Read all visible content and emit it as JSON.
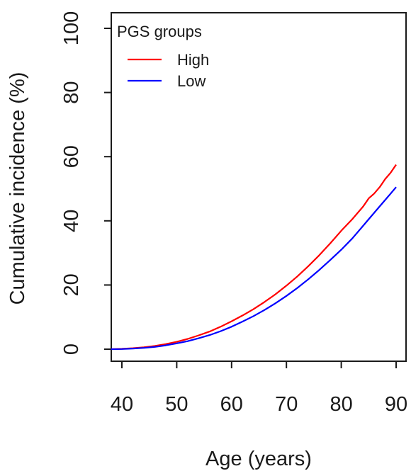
{
  "chart_data": {
    "type": "line",
    "title": "",
    "xlabel": "Age (years)",
    "ylabel": "Cumulative incidence (%)",
    "xlim": [
      38,
      91
    ],
    "ylim": [
      -4,
      105
    ],
    "xticks": [
      40,
      50,
      60,
      70,
      80,
      90
    ],
    "yticks": [
      0,
      20,
      40,
      60,
      80,
      100
    ],
    "grid": false,
    "legend": {
      "title": "PGS groups",
      "position": "top-left"
    },
    "series": [
      {
        "name": "High",
        "color": "#ff0000",
        "x": [
          38,
          40,
          42,
          44,
          46,
          48,
          50,
          52,
          54,
          56,
          58,
          60,
          62,
          64,
          66,
          68,
          70,
          72,
          74,
          76,
          78,
          80,
          82,
          84,
          85,
          86,
          87,
          88,
          89,
          90
        ],
        "y": [
          0,
          0.1,
          0.3,
          0.6,
          1.0,
          1.6,
          2.3,
          3.2,
          4.3,
          5.5,
          7.0,
          8.7,
          10.5,
          12.5,
          14.7,
          17.1,
          19.8,
          22.7,
          25.9,
          29.3,
          33.0,
          36.9,
          40.5,
          44.5,
          47.0,
          48.5,
          50.5,
          53.0,
          55.0,
          57.5
        ]
      },
      {
        "name": "Low",
        "color": "#0000ff",
        "x": [
          38,
          40,
          42,
          44,
          46,
          48,
          50,
          52,
          54,
          56,
          58,
          60,
          62,
          64,
          66,
          68,
          70,
          72,
          74,
          76,
          78,
          80,
          82,
          84,
          85,
          86,
          87,
          88,
          89,
          90
        ],
        "y": [
          0,
          0.05,
          0.2,
          0.4,
          0.7,
          1.2,
          1.8,
          2.5,
          3.4,
          4.4,
          5.6,
          7.0,
          8.6,
          10.3,
          12.2,
          14.3,
          16.6,
          19.1,
          21.8,
          24.7,
          27.8,
          31.0,
          34.5,
          38.5,
          40.5,
          42.5,
          44.5,
          46.5,
          48.5,
          50.5
        ]
      }
    ]
  }
}
